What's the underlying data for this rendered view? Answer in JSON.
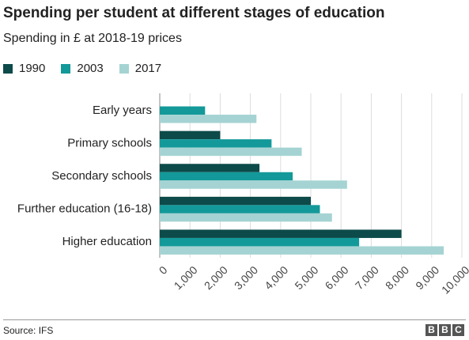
{
  "chart_data": {
    "type": "bar",
    "orientation": "horizontal",
    "title": "Spending per student at different stages of education",
    "subtitle": "Spending in £ at 2018-19 prices",
    "categories": [
      "Early years",
      "Primary schools",
      "Secondary schools",
      "Further education (16-18)",
      "Higher education"
    ],
    "series": [
      {
        "name": "1990",
        "color": "#0d4a4a",
        "values": [
          null,
          2000,
          3300,
          5000,
          8000
        ]
      },
      {
        "name": "2003",
        "color": "#139999",
        "values": [
          1500,
          3700,
          4400,
          5300,
          6600
        ]
      },
      {
        "name": "2017",
        "color": "#a5d3d3",
        "values": [
          3200,
          4700,
          6200,
          5700,
          9400
        ]
      }
    ],
    "xlim": [
      0,
      10000
    ],
    "xticks": [
      0,
      1000,
      2000,
      3000,
      4000,
      5000,
      6000,
      7000,
      8000,
      9000,
      10000
    ],
    "xtick_labels": [
      "0",
      "1,000",
      "2,000",
      "3,000",
      "4,000",
      "5,000",
      "6,000",
      "7,000",
      "8,000",
      "9,000",
      "10,000"
    ],
    "grid": true,
    "legend_position": "top-left"
  },
  "footer": {
    "source": "Source: IFS",
    "logo_letters": [
      "B",
      "B",
      "C"
    ]
  }
}
